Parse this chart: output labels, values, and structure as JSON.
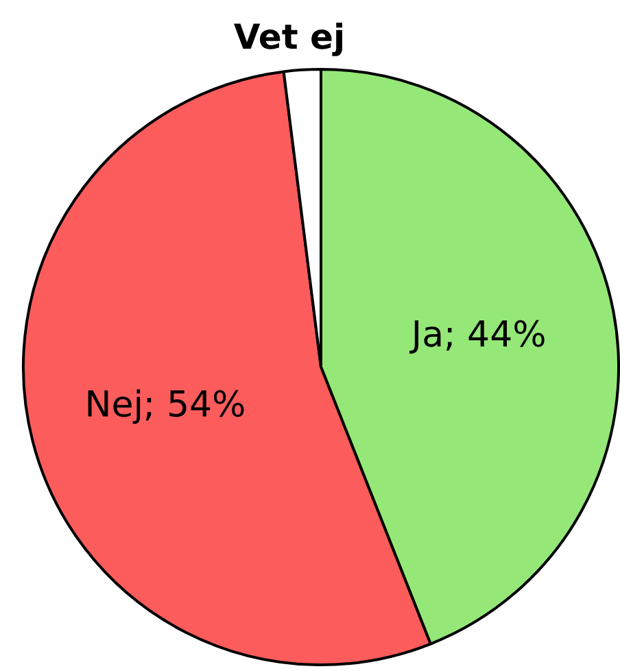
{
  "chart_data": {
    "type": "pie",
    "categories": [
      "Ja",
      "Nej",
      "Vet ej"
    ],
    "values": [
      44,
      54,
      2
    ],
    "colors": [
      "#95e878",
      "#fd5c5c",
      "#ffffff"
    ],
    "value_labels": [
      "44%",
      "54%",
      null
    ],
    "legend": false
  }
}
